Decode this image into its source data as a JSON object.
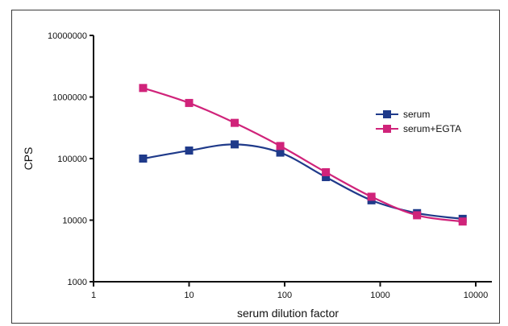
{
  "chart_data": {
    "type": "line",
    "xlabel": "serum dilution factor",
    "ylabel": "CPS",
    "x_scale": "log",
    "y_scale": "log",
    "xlim": [
      1,
      10000
    ],
    "ylim": [
      1000,
      10000000
    ],
    "x_ticks": [
      "1",
      "10",
      "100",
      "1000",
      "10000"
    ],
    "y_ticks": [
      "1000",
      "10000",
      "100000",
      "1000000",
      "10000000"
    ],
    "legend_position": "right",
    "series": [
      {
        "name": "serum",
        "color": "#1f3a8a",
        "x": [
          3.3,
          10,
          30,
          90,
          270,
          810,
          2430,
          7290
        ],
        "y": [
          100000,
          135000,
          170000,
          125000,
          50000,
          21000,
          13000,
          10500
        ]
      },
      {
        "name": "serum+EGTA",
        "color": "#d0237a",
        "x": [
          3.3,
          10,
          30,
          90,
          270,
          810,
          2430,
          7290
        ],
        "y": [
          1400000,
          800000,
          380000,
          160000,
          60000,
          24000,
          12000,
          9500
        ]
      }
    ]
  }
}
